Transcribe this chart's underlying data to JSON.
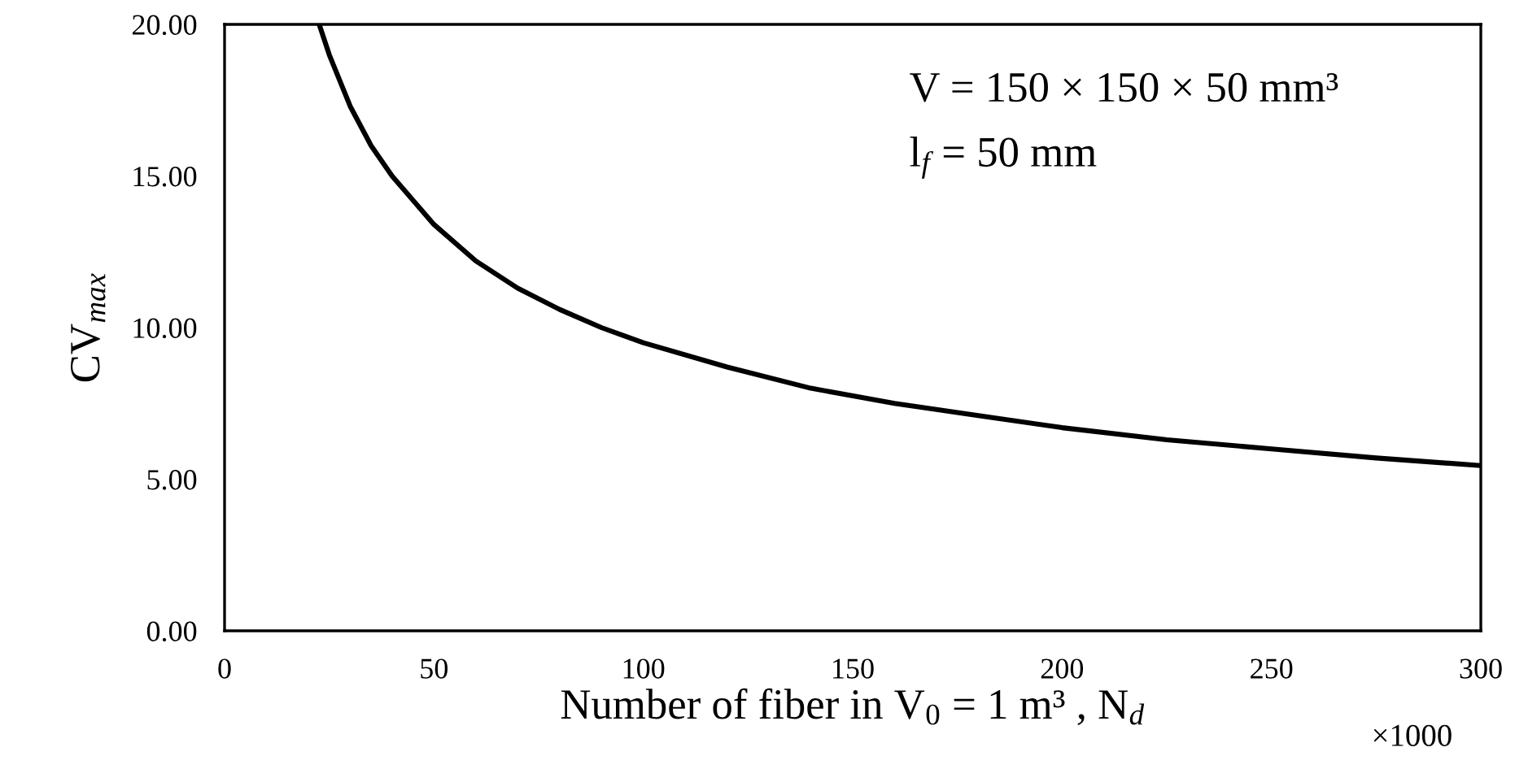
{
  "chart_data": {
    "type": "line",
    "xlabel": "Number of fiber in V$_{0}$ = 1 m³ , N$_{d}$",
    "ylabel": "CV$_{max}$",
    "annotations": [
      "V = 150 × 150 × 50 mm³",
      "l$_{f}$ = 50 mm",
      "×1000"
    ],
    "xlim": [
      0,
      300
    ],
    "ylim": [
      0,
      20
    ],
    "xticks": [
      0,
      50,
      100,
      150,
      200,
      250,
      300
    ],
    "yticks": [
      {
        "value": 0,
        "label": "0.00"
      },
      {
        "value": 5,
        "label": "5.00"
      },
      {
        "value": 10,
        "label": "10.00"
      },
      {
        "value": 15,
        "label": "15.00"
      },
      {
        "value": 20,
        "label": "20.00"
      }
    ],
    "grid": false,
    "legend": false,
    "marker": "none",
    "line_style": "solid",
    "series": [
      {
        "color": "#000000",
        "x": [
          22.6,
          25,
          30,
          35,
          40,
          50,
          60,
          70,
          80,
          90,
          100,
          120,
          140,
          160,
          180,
          200,
          225,
          250,
          275,
          300
        ],
        "values": [
          20,
          19.0,
          17.3,
          16.0,
          15.0,
          13.4,
          12.2,
          11.3,
          10.6,
          10.0,
          9.5,
          8.7,
          8.0,
          7.5,
          7.1,
          6.7,
          6.3,
          6.0,
          5.7,
          5.45
        ]
      }
    ]
  }
}
